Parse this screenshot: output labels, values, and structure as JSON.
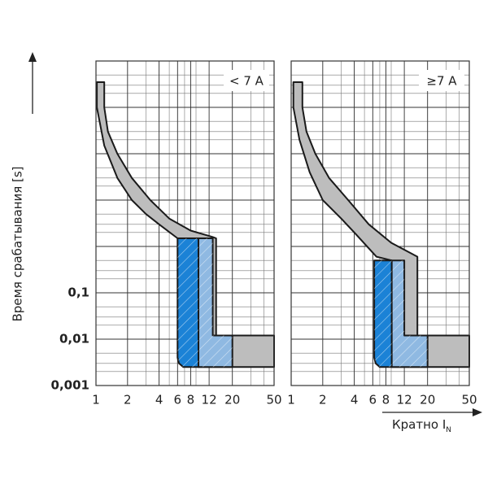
{
  "chart_data": [
    {
      "type": "area",
      "annotation": "< 7 A",
      "y_label": "Время срабатывания [s]",
      "log_x": true,
      "log_y": true,
      "grid": true,
      "xlim": [
        1,
        50
      ],
      "xticks": [
        1,
        2,
        4,
        6,
        8,
        12,
        20,
        50
      ],
      "ylim": [
        0.001,
        10000
      ],
      "yticks": [
        {
          "value": 0.001,
          "label": "0,001"
        },
        {
          "value": 0.01,
          "label": "0,01"
        },
        {
          "value": 0.1,
          "label": "0,1"
        },
        1,
        10,
        100,
        1000,
        10000
      ],
      "series": [
        {
          "color": "#bdbdbd",
          "x": [
            1.02,
            1.2,
            1.2,
            1.3,
            1.6,
            2.2,
            3.3,
            5,
            8,
            13,
            14,
            14,
            50,
            50,
            9.5,
            9.5,
            6,
            4,
            3,
            2.2,
            1.6,
            1.2,
            1.02
          ],
          "values": [
            3500,
            3500,
            1000,
            300,
            100,
            30,
            10,
            4,
            2.2,
            1.6,
            1.5,
            0.012,
            0.012,
            0.0025,
            0.0025,
            1.5,
            1.5,
            3,
            5,
            10,
            30,
            150,
            1000
          ]
        },
        {
          "color": "#8fb9e2",
          "x": [
            9.5,
            13,
            13,
            20,
            20,
            9.5
          ],
          "values": [
            1.5,
            1.5,
            0.012,
            0.012,
            0.0025,
            0.0025
          ]
        },
        {
          "color": "#1b82d6",
          "x": [
            6,
            9.5,
            9.5,
            6.8,
            6.2,
            6
          ],
          "values": [
            1.5,
            1.5,
            0.0025,
            0.0025,
            0.003,
            0.004
          ]
        }
      ]
    },
    {
      "type": "area",
      "annotation": "≥7 A",
      "x_label": "Кратно I",
      "x_label_sub": "N",
      "log_x": true,
      "log_y": true,
      "grid": true,
      "xlim": [
        1,
        50
      ],
      "xticks": [
        1,
        2,
        4,
        6,
        8,
        12,
        20,
        50
      ],
      "ylim": [
        0.001,
        10000
      ],
      "yticks": [
        0.001,
        0.01,
        0.1,
        1,
        10,
        100,
        1000,
        10000
      ],
      "series": [
        {
          "color": "#bdbdbd",
          "x": [
            1.05,
            1.28,
            1.28,
            1.4,
            1.7,
            2.3,
            3.5,
            5.5,
            9,
            16,
            16,
            50,
            50,
            9.1,
            9.1,
            6.5,
            4,
            3,
            2,
            1.5,
            1.2,
            1.05
          ],
          "values": [
            3500,
            3500,
            1000,
            300,
            100,
            30,
            10,
            3,
            1.2,
            0.6,
            0.012,
            0.012,
            0.0025,
            0.0025,
            0.5,
            0.6,
            2,
            4,
            10,
            40,
            200,
            1000
          ]
        },
        {
          "color": "#8fb9e2",
          "x": [
            9.1,
            12,
            12,
            20,
            20,
            9.1
          ],
          "values": [
            0.5,
            0.5,
            0.012,
            0.012,
            0.0025,
            0.0025
          ]
        },
        {
          "color": "#1b82d6",
          "x": [
            6.2,
            9.1,
            9.1,
            7,
            6.4,
            6.2
          ],
          "values": [
            0.5,
            0.5,
            0.0025,
            0.0025,
            0.003,
            0.004
          ]
        }
      ]
    }
  ]
}
